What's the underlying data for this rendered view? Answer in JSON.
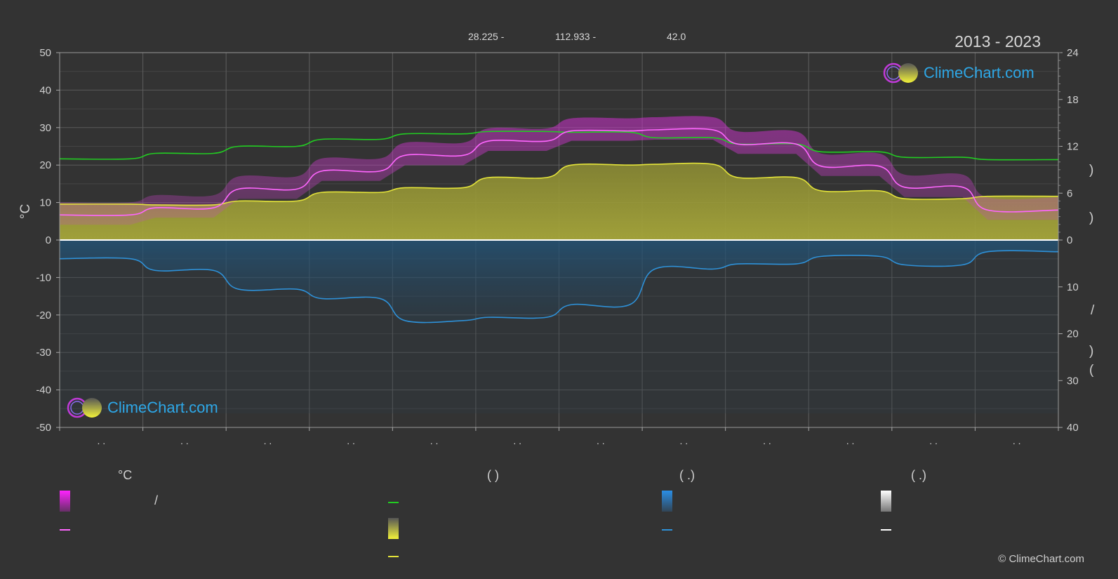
{
  "header": {
    "latitude": "28.225 -",
    "longitude": "112.933 -",
    "elevation": "42.0",
    "period": "2013 - 2023"
  },
  "brand": {
    "logo_text": "ClimeChart.com",
    "copyright": "© ClimeChart.com"
  },
  "chart_data": {
    "type": "line",
    "x": [
      0,
      1,
      2,
      3,
      4,
      5,
      6,
      7,
      8,
      9,
      10,
      11
    ],
    "month_labels": [
      ". .",
      ". .",
      ". .",
      ". .",
      ". .",
      ". .",
      ". .",
      ". .",
      ". .",
      ". .",
      ". .",
      ". ."
    ],
    "ylabel": "°C",
    "y_left_ticks": [
      50,
      40,
      30,
      20,
      10,
      0,
      -10,
      -20,
      -30,
      -40,
      -50
    ],
    "y_right_top_ticks": [
      24,
      18,
      12,
      6,
      0
    ],
    "y_right_bottom_ticks": [
      10,
      20,
      30,
      40
    ],
    "ylim": [
      -50,
      50
    ],
    "grid": true,
    "series": [
      {
        "key": "temp_mean",
        "color": "#ff66ff",
        "values": [
          6.7,
          8.6,
          13.6,
          18.4,
          22.6,
          26.4,
          29.1,
          29.4,
          25.6,
          19.7,
          14.1,
          8.0
        ]
      },
      {
        "key": "daylight",
        "color": "#22cc22",
        "unit": "h",
        "values": [
          10.4,
          11.1,
          12.0,
          12.9,
          13.6,
          13.9,
          13.8,
          13.1,
          12.3,
          11.3,
          10.6,
          10.3
        ]
      },
      {
        "key": "sunshine",
        "color": "#e3e33a",
        "unit": "h",
        "values": [
          4.6,
          4.5,
          5.0,
          6.1,
          6.7,
          8.0,
          9.6,
          9.7,
          8.0,
          6.3,
          5.3,
          5.6
        ]
      },
      {
        "key": "precipitation",
        "color": "#2e91d8",
        "unit": "mm",
        "values": [
          4.0,
          6.5,
          10.5,
          12.5,
          17.2,
          16.5,
          13.8,
          6.2,
          5.1,
          3.5,
          5.3,
          2.5
        ]
      }
    ]
  },
  "legend": {
    "col1_head": "°C",
    "col1_item1_sep": "/",
    "col2_head": "(          )",
    "col3_head": "(   .)",
    "col4_head": "(   .)",
    "right_axis_glyphs": [
      ")",
      ")",
      "/",
      ")",
      "("
    ]
  },
  "colors": {
    "background": "#333333",
    "temp": "#ff66ff",
    "daylight": "#22cc22",
    "sunshine": "#e3e33a",
    "precipitation": "#2e91d8",
    "snow": "#ffffff"
  }
}
